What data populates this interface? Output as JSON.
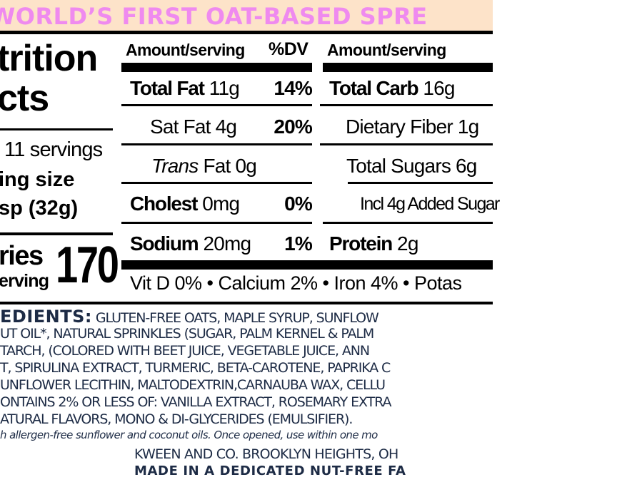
{
  "banner": {
    "text": "WORLD’S FIRST OAT-BASED SPRE",
    "color": "#ef8aef",
    "background": "#fde3c9"
  },
  "left": {
    "title_1": "trition",
    "title_2": "cts",
    "servings": "11 servings",
    "serving_size_label": "ing size",
    "serving_size_value": "sp (32g)",
    "calories_label_1": "ries",
    "calories_label_2": "erving",
    "calories_value": "170"
  },
  "col1": {
    "header_amount": "Amount/serving",
    "header_dv": "%DV",
    "rows": [
      {
        "name": "Total Fat",
        "amount": "11g",
        "dv": "14%"
      },
      {
        "name": "Sat Fat",
        "amount": "4g",
        "dv": "20%"
      },
      {
        "name": "Trans",
        "name2": "Fat 0g"
      },
      {
        "name": "Cholest",
        "amount": "0mg",
        "dv": "0%"
      },
      {
        "name": "Sodium",
        "amount": "20mg",
        "dv": "1%"
      }
    ]
  },
  "col2": {
    "header_amount": "Amount/serving",
    "rows": [
      {
        "name": "Total Carb",
        "amount": "16g"
      },
      {
        "text": "Dietary Fiber 1g"
      },
      {
        "text": "Total Sugars 6g"
      },
      {
        "text": "Incl 4g Added Sugar"
      },
      {
        "name": "Protein",
        "amount": "2g"
      }
    ]
  },
  "micros": "Vit D 0% • Calcium 2% • Iron 4% • Potas",
  "ingredients": {
    "label": "EDIENTS:",
    "lines": [
      " GLUTEN-FREE OATS, MAPLE SYRUP, SUNFLOW",
      "UT OIL*, NATURAL SPRINKLES (SUGAR, PALM KERNEL & PALM",
      "TARCH, (COLORED WITH BEET JUICE, VEGETABLE JUICE, ANN",
      "T, SPIRULINA EXTRACT, TURMERIC, BETA-CAROTENE, PAPRIKA C",
      "UNFLOWER LECITHIN, MALTODEXTRIN,CARNAUBA WAX, CELLU",
      "ONTAINS 2% OR LESS OF: VANILLA EXTRACT, ROSEMARY EXTRA",
      "ATURAL FLAVORS, MONO & DI-GLYCERIDES (EMULSIFIER)."
    ],
    "note": "h allergen-free sunflower and coconut oils. Once opened, use within one mo",
    "color": "#1d2b45"
  },
  "footer": {
    "address": "KWEEN AND CO. BROOKLYN HEIGHTS, OH",
    "facility": "MADE IN A DEDICATED NUT-FREE FA"
  }
}
